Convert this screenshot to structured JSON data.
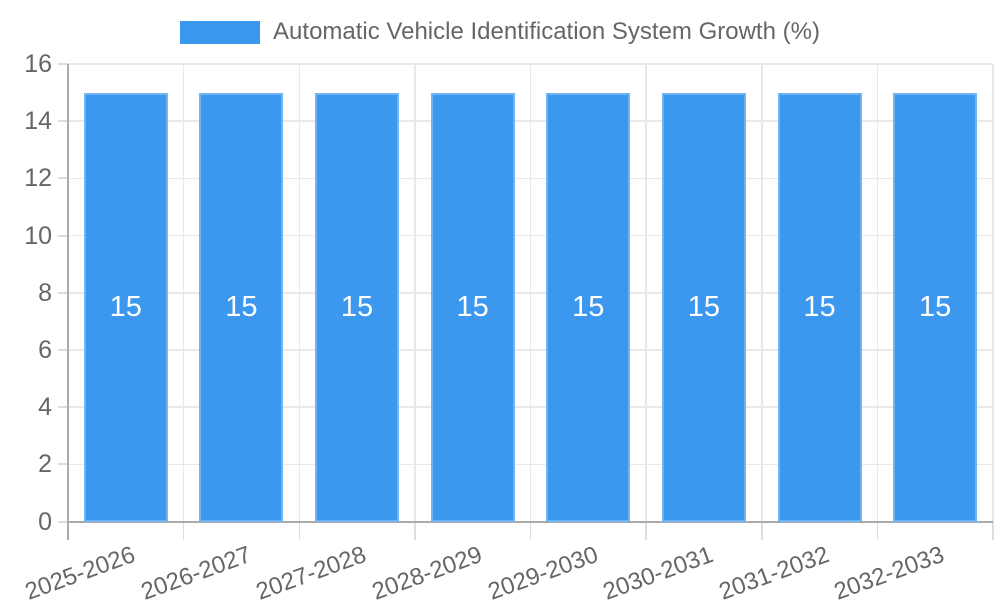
{
  "legend": {
    "label": "Automatic Vehicle Identification System Growth (%)"
  },
  "chart_data": {
    "type": "bar",
    "title": "",
    "categories": [
      "2025-2026",
      "2026-2027",
      "2027-2028",
      "2028-2029",
      "2029-2030",
      "2030-2031",
      "2031-2032",
      "2032-2033"
    ],
    "series": [
      {
        "name": "Automatic Vehicle Identification System Growth (%)",
        "values": [
          15,
          15,
          15,
          15,
          15,
          15,
          15,
          15
        ]
      }
    ],
    "value_labels": [
      "15",
      "15",
      "15",
      "15",
      "15",
      "15",
      "15",
      "15"
    ],
    "value_label_position": "inside-center",
    "xlabel": "",
    "ylabel": "",
    "ylim": [
      0,
      16
    ],
    "yticks": [
      0,
      2,
      4,
      6,
      8,
      10,
      12,
      14,
      16
    ],
    "grid": true,
    "legend_position": "top",
    "x_tick_rotation_deg": -20
  },
  "colors": {
    "bar": "#3b98ee",
    "grid": "#e9e9e9",
    "tick_mark": "#dcdcdc",
    "axis_line": "#ababab",
    "tick_text": "#666666",
    "legend_text": "#666666",
    "bar_label": "#ffffff",
    "background": "#ffffff"
  }
}
